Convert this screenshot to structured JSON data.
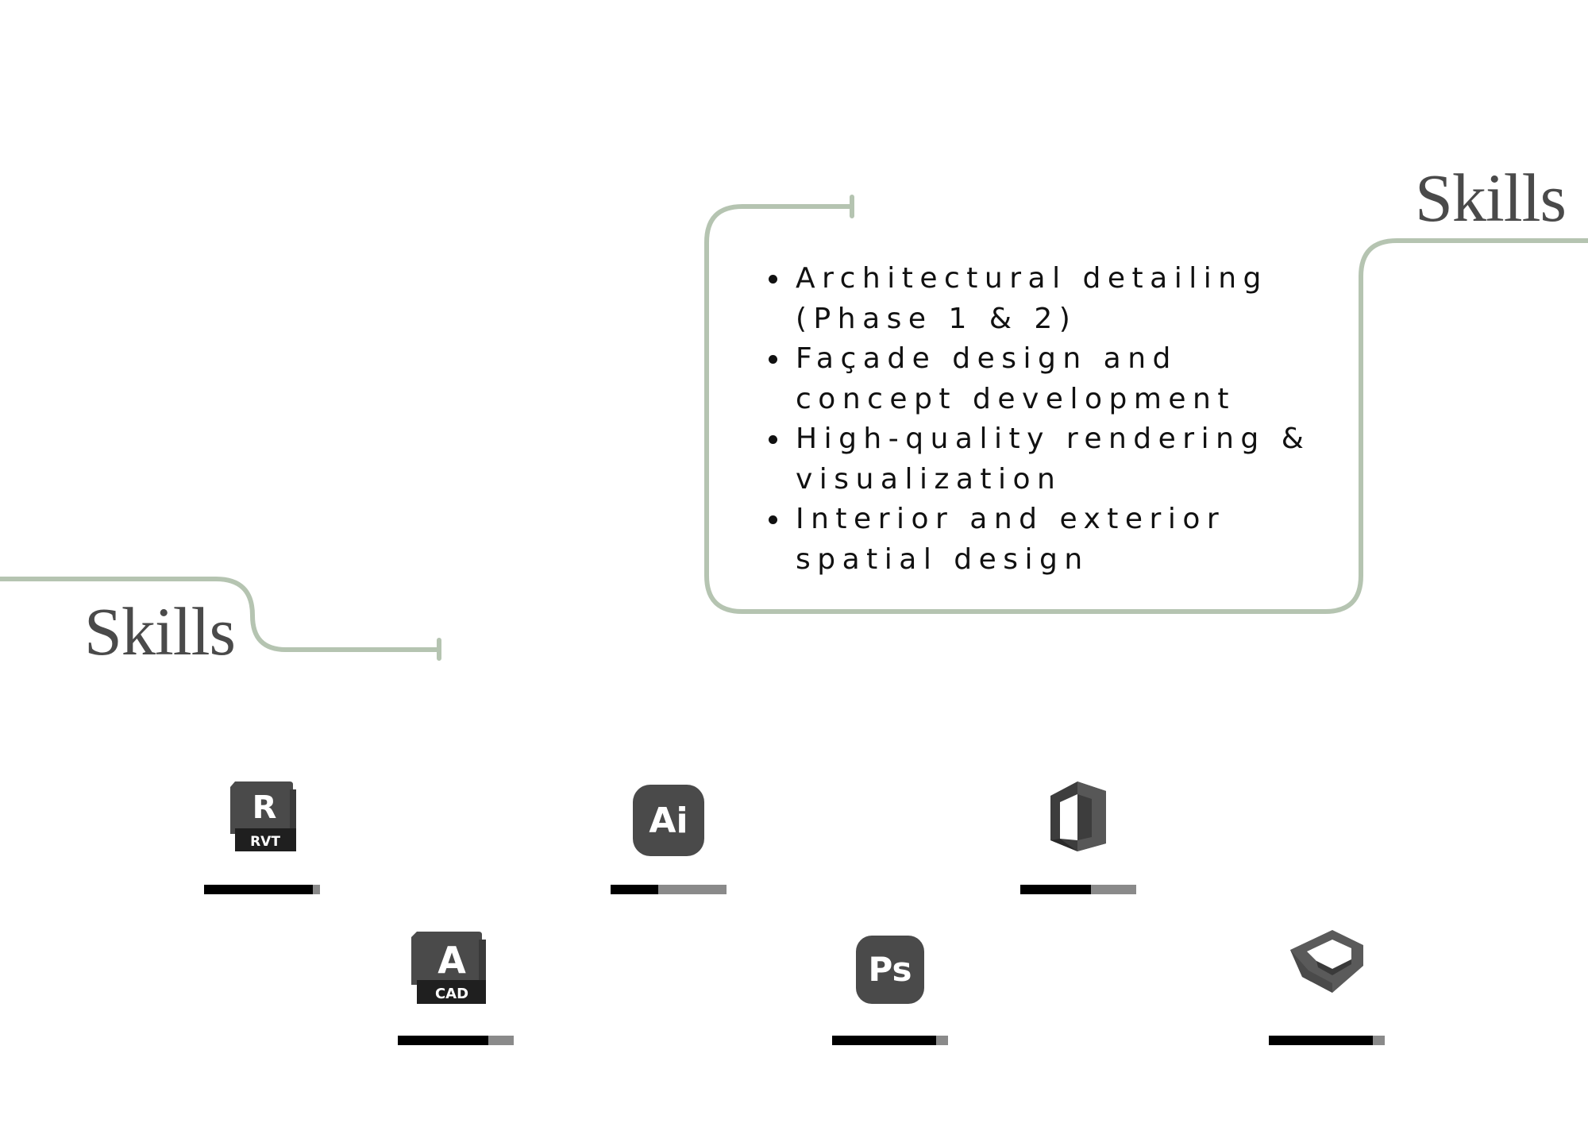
{
  "headings": {
    "left": "Skills",
    "right": "Skills"
  },
  "skills": [
    {
      "line1": "Architectural detailing",
      "line2": "(Phase 1 & 2)"
    },
    {
      "line1": "Façade design and",
      "line2": "concept development"
    },
    {
      "line1": "High-quality rendering &",
      "line2": "visualization"
    },
    {
      "line1": "Interior and exterior",
      "line2": "spatial design"
    }
  ],
  "tools": [
    {
      "icon": "revit-icon",
      "icon_text": [
        "R",
        "RVT"
      ],
      "proficiency": 0.94
    },
    {
      "icon": "illustrator-icon",
      "icon_text": [
        "Ai"
      ],
      "proficiency": 0.41
    },
    {
      "icon": "office-icon",
      "icon_text": [],
      "proficiency": 0.61
    },
    {
      "icon": "autocad-icon",
      "icon_text": [
        "A",
        "CAD"
      ],
      "proficiency": 0.78
    },
    {
      "icon": "photoshop-icon",
      "icon_text": [
        "Ps"
      ],
      "proficiency": 0.9
    },
    {
      "icon": "sketchup-icon",
      "icon_text": [],
      "proficiency": 0.9
    }
  ],
  "colors": {
    "accent_line": "#b5c4b1",
    "heading": "#4a4a4a",
    "icon": "#4a4a4a",
    "bar_fill": "#000000",
    "bar_track": "#8a8a8a"
  }
}
